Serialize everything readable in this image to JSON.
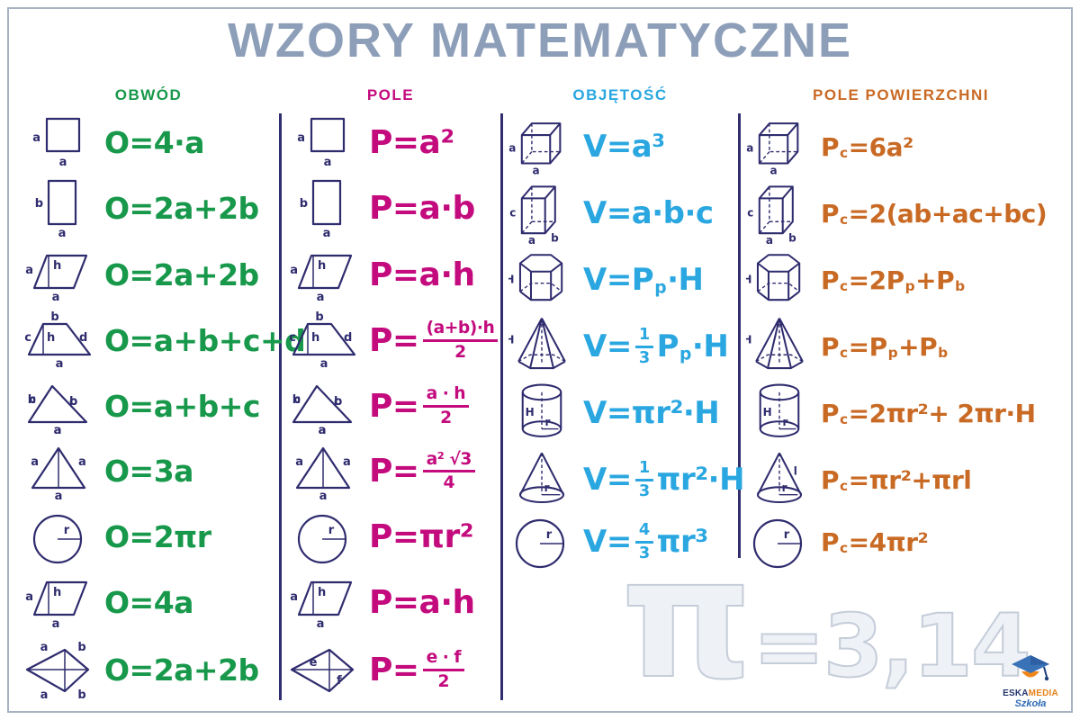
{
  "title": "WZORY MATEMATYCZNE",
  "colors": {
    "title": "#8d9eb8",
    "green": "#17984a",
    "magenta": "#c30b7e",
    "cyan": "#2aa7e0",
    "orange": "#c96a24",
    "navy": "#2f2c6e",
    "border": "#a9b2c3",
    "watermark_fill": "#eef1f6",
    "watermark_stroke": "#c5cdd9"
  },
  "watermark": {
    "pi": "π",
    "rest": "=3,14"
  },
  "logo": {
    "brand_a": "ESKA",
    "brand_b": "MEDIA",
    "subtitle": "Szkoła"
  },
  "columns": [
    {
      "header": "OBWÓD",
      "color": "#17984a",
      "rows": [
        {
          "icon": "square",
          "labels": [
            "a",
            "a"
          ],
          "formula": [
            {
              "text": "O=4·a"
            }
          ]
        },
        {
          "icon": "rectangle",
          "labels": [
            "b",
            "a"
          ],
          "formula": [
            {
              "text": "O=2a+2b"
            }
          ]
        },
        {
          "icon": "parallelogram",
          "labels": [
            "a",
            "h",
            "a"
          ],
          "formula": [
            {
              "text": "O=2a+2b"
            }
          ]
        },
        {
          "icon": "trapezoid",
          "labels": [
            "b",
            "c",
            "h",
            "d",
            "a"
          ],
          "formula": [
            {
              "text": "O=a+b+c+d"
            }
          ]
        },
        {
          "icon": "triangle",
          "labels": [
            "c",
            "b",
            "a"
          ],
          "formula": [
            {
              "text": "O=a+b+c"
            }
          ]
        },
        {
          "icon": "triangle-equilateral",
          "labels": [
            "a",
            "a",
            "a"
          ],
          "formula": [
            {
              "text": "O=3a"
            }
          ]
        },
        {
          "icon": "circle",
          "labels": [
            "r"
          ],
          "formula": [
            {
              "text": "O=2πr"
            }
          ]
        },
        {
          "icon": "rhombus",
          "labels": [
            "a",
            "h",
            "a"
          ],
          "formula": [
            {
              "text": "O=4a"
            }
          ]
        },
        {
          "icon": "kite",
          "labels": [
            "a",
            "b",
            "a",
            "b"
          ],
          "formula": [
            {
              "text": "O=2a+2b"
            }
          ]
        }
      ]
    },
    {
      "header": "POLE",
      "color": "#c30b7e",
      "rows": [
        {
          "icon": "square",
          "labels": [
            "a",
            "a"
          ],
          "formula": [
            {
              "text": "P=a²"
            }
          ]
        },
        {
          "icon": "rectangle",
          "labels": [
            "b",
            "a"
          ],
          "formula": [
            {
              "text": "P=a·b"
            }
          ]
        },
        {
          "icon": "parallelogram",
          "labels": [
            "a",
            "h",
            "a"
          ],
          "formula": [
            {
              "text": "P=a·h"
            }
          ]
        },
        {
          "icon": "trapezoid",
          "labels": [
            "b",
            "c",
            "h",
            "d",
            "a"
          ],
          "formula": [
            {
              "text": "P= "
            },
            {
              "frac": [
                "(a+b)·h",
                "2"
              ]
            }
          ]
        },
        {
          "icon": "triangle",
          "labels": [
            "c",
            "b",
            "a"
          ],
          "formula": [
            {
              "text": "P= "
            },
            {
              "frac": [
                "a · h",
                "2"
              ]
            }
          ]
        },
        {
          "icon": "triangle-equilateral",
          "labels": [
            "a",
            "a",
            "a"
          ],
          "formula": [
            {
              "text": "P= "
            },
            {
              "frac": [
                "a² √3",
                "4"
              ]
            }
          ]
        },
        {
          "icon": "circle",
          "labels": [
            "r"
          ],
          "formula": [
            {
              "text": "P=πr²"
            }
          ]
        },
        {
          "icon": "rhombus",
          "labels": [
            "a",
            "h",
            "a"
          ],
          "formula": [
            {
              "text": "P=a·h"
            }
          ]
        },
        {
          "icon": "kite-diagonals",
          "labels": [
            "e",
            "f"
          ],
          "formula": [
            {
              "text": "P= "
            },
            {
              "frac": [
                "e · f",
                "2"
              ]
            }
          ]
        }
      ]
    },
    {
      "header": "OBJĘTOŚĆ",
      "color": "#2aa7e0",
      "rows": [
        {
          "icon": "cube",
          "labels": [
            "a",
            "a"
          ],
          "formula": [
            {
              "text": "V=a³"
            }
          ]
        },
        {
          "icon": "cuboid",
          "labels": [
            "c",
            "a",
            "b"
          ],
          "formula": [
            {
              "text": "V=a·b·c"
            }
          ]
        },
        {
          "icon": "hex-prism",
          "labels": [
            "H"
          ],
          "formula": [
            {
              "text": "V=P"
            },
            {
              "sub": "p"
            },
            {
              "text": "·H"
            }
          ]
        },
        {
          "icon": "hex-pyramid",
          "labels": [
            "H"
          ],
          "formula": [
            {
              "text": "V="
            },
            {
              "frac": [
                "1",
                "3"
              ]
            },
            {
              "text": "P"
            },
            {
              "sub": "p"
            },
            {
              "text": "·H"
            }
          ]
        },
        {
          "icon": "cylinder",
          "labels": [
            "H",
            "r"
          ],
          "formula": [
            {
              "text": "V=πr²·H"
            }
          ]
        },
        {
          "icon": "cone",
          "labels": [
            "r"
          ],
          "formula": [
            {
              "text": "V="
            },
            {
              "frac": [
                "1",
                "3"
              ]
            },
            {
              "text": "πr²·H"
            }
          ]
        },
        {
          "icon": "sphere",
          "labels": [
            "r"
          ],
          "formula": [
            {
              "text": "V="
            },
            {
              "frac": [
                "4",
                "3"
              ]
            },
            {
              "text": "πr³"
            }
          ]
        }
      ]
    },
    {
      "header": "POLE POWIERZCHNI",
      "color": "#c96a24",
      "rows": [
        {
          "icon": "cube",
          "labels": [
            "a",
            "a"
          ],
          "formula": [
            {
              "text": "P"
            },
            {
              "sub": "c"
            },
            {
              "text": "=6a²"
            }
          ]
        },
        {
          "icon": "cuboid",
          "labels": [
            "c",
            "a",
            "b"
          ],
          "formula": [
            {
              "text": "P"
            },
            {
              "sub": "c"
            },
            {
              "text": "=2(ab+ac+bc)"
            }
          ]
        },
        {
          "icon": "hex-prism",
          "labels": [
            "H"
          ],
          "formula": [
            {
              "text": "P"
            },
            {
              "sub": "c"
            },
            {
              "text": "=2P"
            },
            {
              "sub": "p"
            },
            {
              "text": "+P"
            },
            {
              "sub": "b"
            }
          ]
        },
        {
          "icon": "hex-pyramid",
          "labels": [
            "H"
          ],
          "formula": [
            {
              "text": "P"
            },
            {
              "sub": "c"
            },
            {
              "text": "=P"
            },
            {
              "sub": "p"
            },
            {
              "text": "+P"
            },
            {
              "sub": "b"
            }
          ]
        },
        {
          "icon": "cylinder",
          "labels": [
            "H",
            "r"
          ],
          "formula": [
            {
              "text": "P"
            },
            {
              "sub": "c"
            },
            {
              "text": "=2πr²+ 2πr·H"
            }
          ]
        },
        {
          "icon": "cone",
          "labels": [
            "l",
            "r"
          ],
          "formula": [
            {
              "text": "P"
            },
            {
              "sub": "c"
            },
            {
              "text": "=πr²+πrl"
            }
          ]
        },
        {
          "icon": "sphere",
          "labels": [
            "r"
          ],
          "formula": [
            {
              "text": "P"
            },
            {
              "sub": "c"
            },
            {
              "text": "=4πr²"
            }
          ]
        }
      ]
    }
  ]
}
